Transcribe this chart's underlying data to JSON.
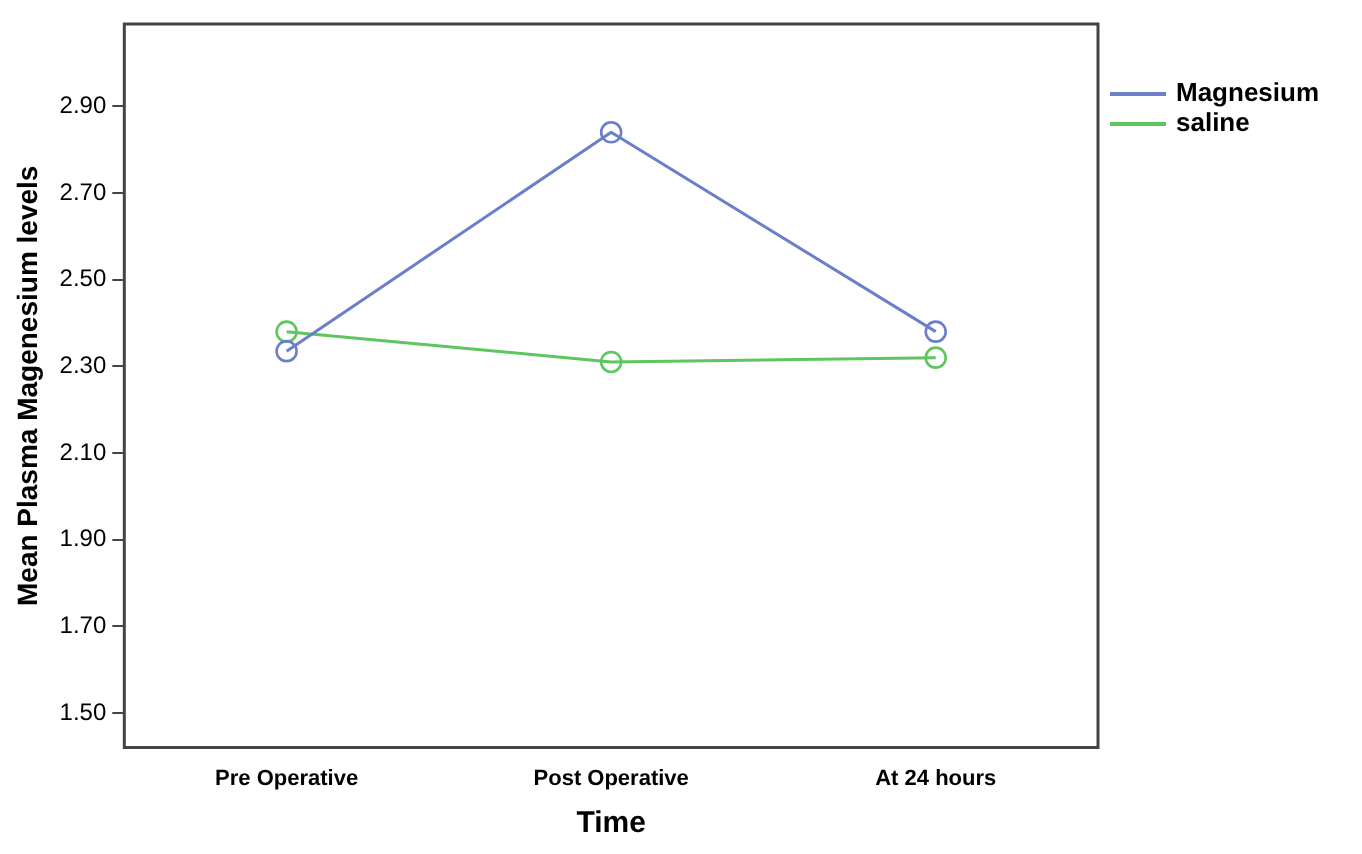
{
  "chart_data": {
    "type": "line",
    "xlabel": "Time",
    "ylabel": "Mean Plasma Magenesium levels",
    "categories": [
      "Pre Operative",
      "Post Operative",
      "At 24 hours"
    ],
    "series": [
      {
        "name": "Magnesium",
        "color": "#6b7fc9",
        "values": [
          2.335,
          2.84,
          2.38
        ]
      },
      {
        "name": "saline",
        "color": "#5ec65e",
        "values": [
          2.38,
          2.31,
          2.32
        ]
      }
    ],
    "ylim": [
      1.42,
      3.09
    ],
    "yticks": [
      {
        "value": 1.5,
        "label": "1.50"
      },
      {
        "value": 1.7,
        "label": "1.70"
      },
      {
        "value": 1.9,
        "label": "1.90"
      },
      {
        "value": 2.1,
        "label": "2.10"
      },
      {
        "value": 2.3,
        "label": "2.30"
      },
      {
        "value": 2.5,
        "label": "2.50"
      },
      {
        "value": 2.7,
        "label": "2.70"
      },
      {
        "value": 2.9,
        "label": "2.90"
      }
    ],
    "grid": false,
    "legend": "top right",
    "marker": "circle",
    "line_style": "solid"
  }
}
